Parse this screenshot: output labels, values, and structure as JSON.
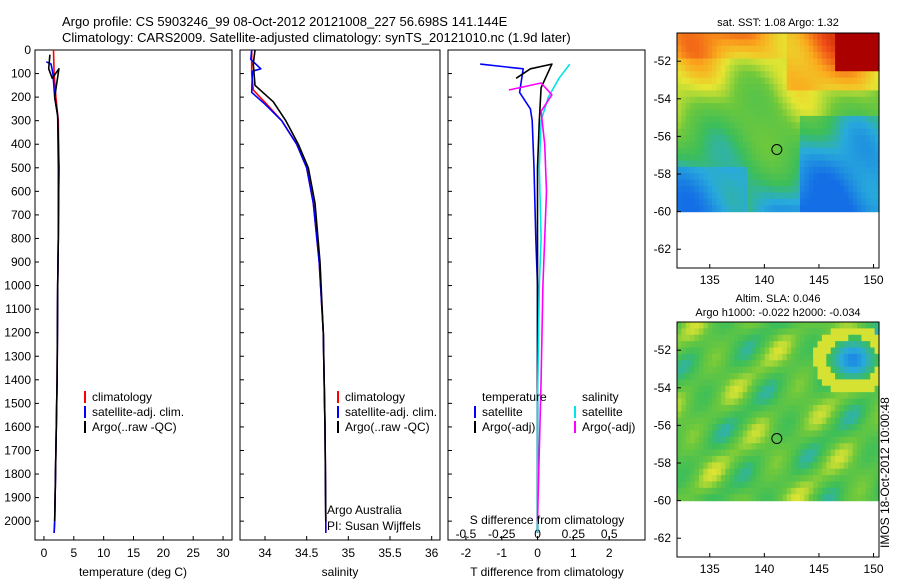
{
  "header": {
    "line1": "Argo profile: CS 5903246_99 08-Oct-2012 20121008_227 56.698S 141.144E",
    "line2": "Climatology: CARS2009. Satellite-adjusted climatology: synTS_20121010.nc (1.9d later)"
  },
  "colors": {
    "climatology": "#ff0000",
    "satellite": "#0000ff",
    "argo": "#000000",
    "sal_satellite": "#00e5e5",
    "sal_argo": "#ff00ff"
  },
  "chart_data": [
    {
      "type": "line",
      "id": "temperature",
      "xlabel": "temperature (deg C)",
      "xlim": [
        -1.5,
        31.5
      ],
      "xticks": [
        "0",
        "5",
        "10",
        "15",
        "20",
        "25",
        "30"
      ],
      "ylim": [
        0,
        2080
      ],
      "yticks": [
        "0",
        "100",
        "200",
        "300",
        "400",
        "500",
        "600",
        "700",
        "800",
        "900",
        "1000",
        "1100",
        "1200",
        "1300",
        "1400",
        "1500",
        "1600",
        "1700",
        "1800",
        "1900",
        "2000"
      ],
      "legend": [
        "climatology",
        "satellite-adj. clim.",
        "Argo(..raw -QC)"
      ],
      "series": [
        {
          "name": "climatology",
          "color": "#ff0000",
          "points": [
            [
              1.6,
              0
            ],
            [
              1.7,
              100
            ],
            [
              2.0,
              200
            ],
            [
              2.4,
              300
            ],
            [
              2.5,
              500
            ],
            [
              2.4,
              800
            ],
            [
              2.3,
              1000
            ],
            [
              2.2,
              1400
            ],
            [
              2.0,
              1700
            ],
            [
              1.8,
              2000
            ],
            [
              1.7,
              2050
            ]
          ]
        },
        {
          "name": "satellite-adj. clim.",
          "color": "#0000ff",
          "points": [
            [
              0.4,
              50
            ],
            [
              1.2,
              60
            ],
            [
              1.5,
              100
            ],
            [
              1.8,
              200
            ],
            [
              2.3,
              280
            ],
            [
              2.4,
              500
            ],
            [
              2.4,
              800
            ],
            [
              2.3,
              1000
            ],
            [
              2.2,
              1400
            ],
            [
              2.0,
              1700
            ],
            [
              1.8,
              2000
            ],
            [
              1.7,
              2050
            ]
          ]
        },
        {
          "name": "Argo(..raw -QC)",
          "color": "#000000",
          "points": [
            [
              1.0,
              20
            ],
            [
              0.8,
              80
            ],
            [
              1.4,
              120
            ],
            [
              2.5,
              80
            ],
            [
              1.8,
              200
            ],
            [
              2.3,
              280
            ],
            [
              2.5,
              500
            ],
            [
              2.4,
              800
            ],
            [
              2.3,
              1000
            ],
            [
              2.2,
              1400
            ],
            [
              2.0,
              1700
            ],
            [
              1.8,
              2000
            ]
          ]
        }
      ]
    },
    {
      "type": "line",
      "id": "salinity",
      "xlabel": "salinity",
      "xlim": [
        33.7,
        36.1
      ],
      "xticks": [
        "34",
        "34.5",
        "35",
        "35.5",
        "36"
      ],
      "ylim": [
        0,
        2080
      ],
      "legend": [
        "climatology",
        "satellite-adj. clim.",
        "Argo(..raw -QC)"
      ],
      "annotation": [
        "Argo Australia",
        "PI: Susan Wijffels"
      ],
      "series": [
        {
          "name": "climatology",
          "color": "#ff0000",
          "points": [
            [
              33.84,
              0
            ],
            [
              33.84,
              100
            ],
            [
              33.86,
              170
            ],
            [
              34.02,
              230
            ],
            [
              34.2,
              300
            ],
            [
              34.38,
              400
            ],
            [
              34.5,
              500
            ],
            [
              34.58,
              650
            ],
            [
              34.65,
              900
            ],
            [
              34.7,
              1200
            ],
            [
              34.72,
              1600
            ],
            [
              34.73,
              2000
            ],
            [
              34.73,
              2050
            ]
          ]
        },
        {
          "name": "satellite-adj. clim.",
          "color": "#0000ff",
          "points": [
            [
              33.84,
              0
            ],
            [
              33.83,
              40
            ],
            [
              33.95,
              80
            ],
            [
              33.85,
              90
            ],
            [
              33.84,
              180
            ],
            [
              34.0,
              230
            ],
            [
              34.2,
              300
            ],
            [
              34.38,
              400
            ],
            [
              34.5,
              500
            ],
            [
              34.58,
              650
            ],
            [
              34.65,
              900
            ],
            [
              34.7,
              1200
            ],
            [
              34.72,
              1600
            ],
            [
              34.73,
              2000
            ],
            [
              34.73,
              2050
            ]
          ]
        },
        {
          "name": "Argo(..raw -QC)",
          "color": "#000000",
          "points": [
            [
              33.88,
              0
            ],
            [
              33.86,
              60
            ],
            [
              33.88,
              150
            ],
            [
              34.1,
              220
            ],
            [
              34.25,
              300
            ],
            [
              34.4,
              400
            ],
            [
              34.52,
              500
            ],
            [
              34.6,
              650
            ],
            [
              34.66,
              900
            ],
            [
              34.7,
              1200
            ],
            [
              34.72,
              1600
            ],
            [
              34.73,
              2000
            ]
          ]
        }
      ]
    },
    {
      "type": "line",
      "id": "difference",
      "xlabel": "T difference from climatology",
      "xlabel2": "S difference from climatology",
      "xlim": [
        -2.5,
        3
      ],
      "xticks": [
        "-2",
        "-1",
        "0",
        "1",
        "2"
      ],
      "xticks2": [
        "-0.5",
        "-0.25",
        "0",
        "0.25",
        "0.5"
      ],
      "ylim": [
        0,
        2080
      ],
      "legend_title_t": "temperature",
      "legend_title_s": "salinity",
      "legend": [
        "satellite",
        "Argo(-adj)",
        "satellite",
        "Argo(-adj)"
      ],
      "series": [
        {
          "name": "satellite",
          "color": "#0000ff",
          "points": [
            [
              -1.6,
              60
            ],
            [
              -0.4,
              80
            ],
            [
              -0.5,
              180
            ],
            [
              -0.2,
              250
            ],
            [
              -0.15,
              300
            ],
            [
              -0.1,
              500
            ],
            [
              -0.05,
              800
            ],
            [
              0,
              1000
            ],
            [
              0,
              2050
            ]
          ]
        },
        {
          "name": "Argo(-adj)",
          "color": "#000000",
          "points": [
            [
              -0.6,
              120
            ],
            [
              -0.2,
              80
            ],
            [
              0.4,
              60
            ],
            [
              0.1,
              160
            ],
            [
              0.05,
              300
            ],
            [
              0,
              500
            ],
            [
              0,
              2050
            ]
          ]
        },
        {
          "name": "satellite",
          "color": "#00e5e5",
          "points": [
            [
              0.9,
              60
            ],
            [
              0.6,
              120
            ],
            [
              0.3,
              200
            ],
            [
              0.1,
              300
            ],
            [
              0.05,
              500
            ],
            [
              0.1,
              800
            ],
            [
              0.05,
              1000
            ],
            [
              0,
              1500
            ],
            [
              0,
              2050
            ]
          ]
        },
        {
          "name": "Argo(-adj)",
          "color": "#ff00ff",
          "points": [
            [
              -0.8,
              170
            ],
            [
              0.1,
              140
            ],
            [
              0.4,
              190
            ],
            [
              0.1,
              260
            ],
            [
              0.2,
              400
            ],
            [
              0.25,
              600
            ],
            [
              0.2,
              800
            ],
            [
              0.15,
              1000
            ],
            [
              0.1,
              1400
            ],
            [
              0,
              2000
            ]
          ]
        }
      ]
    },
    {
      "type": "heatmap",
      "id": "sst-map",
      "title": "sat. SST: 1.08 Argo: 1.32",
      "xlim": [
        132,
        150.5
      ],
      "ylim": [
        -63,
        -50.5
      ],
      "xticks": [
        "135",
        "140",
        "145",
        "150"
      ],
      "yticks": [
        "-52",
        "-54",
        "-56",
        "-58",
        "-60",
        "-62"
      ],
      "marker": [
        141.144,
        -56.698
      ]
    },
    {
      "type": "heatmap",
      "id": "sla-map",
      "title": "Altim. SLA: 0.046",
      "subtitle": "Argo h1000: -0.022 h2000: -0.034",
      "xlim": [
        132,
        150.5
      ],
      "ylim": [
        -63,
        -50.5
      ],
      "xticks": [
        "135",
        "140",
        "145",
        "150"
      ],
      "yticks": [
        "-52",
        "-54",
        "-56",
        "-58",
        "-60",
        "-62"
      ],
      "marker": [
        141.144,
        -56.698
      ]
    }
  ],
  "footer": {
    "timestamp": "IMOS 18-Oct-2012 10:00:48"
  }
}
